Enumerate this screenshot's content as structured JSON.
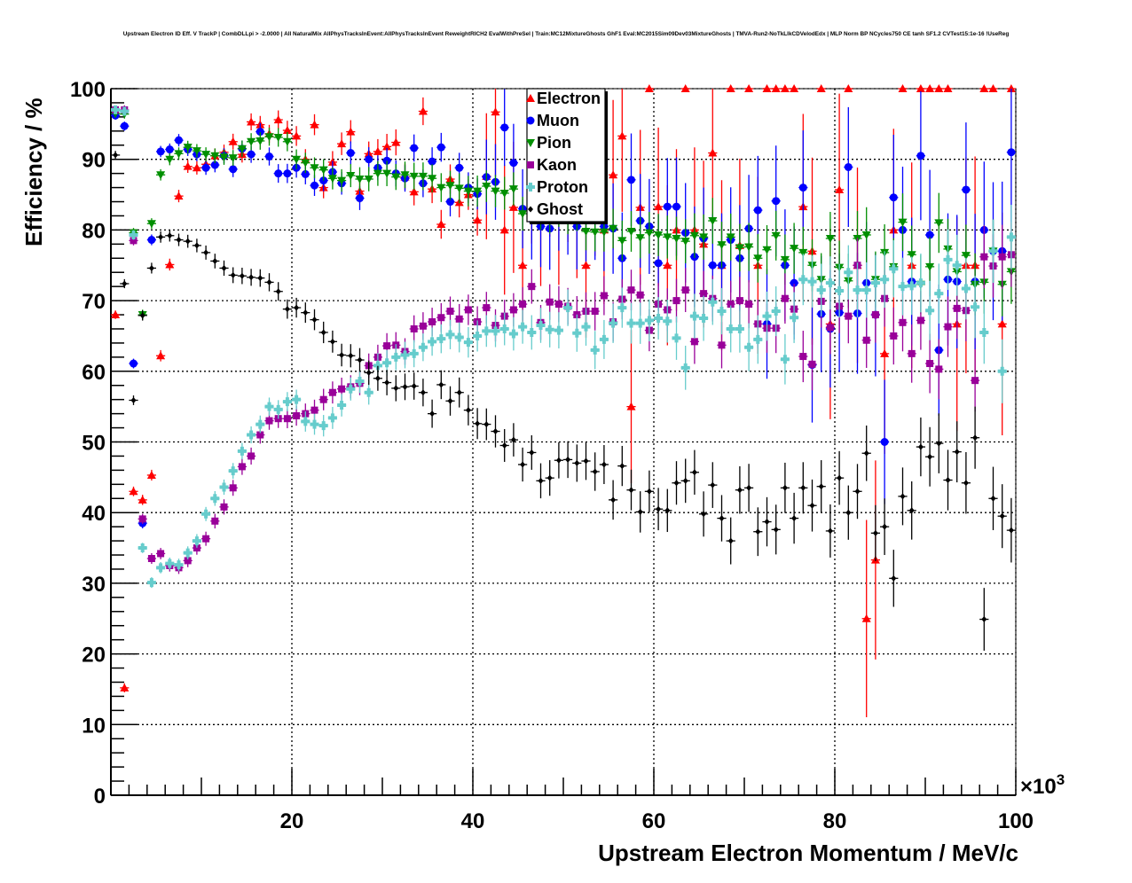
{
  "chart_data": {
    "type": "scatter",
    "title": "Upstream Electron ID Eff. V TrackP | CombDLLpi > -2.0000 | All NaturalMix AllPhysTracksInEvent:AllPhysTracksInEvent ReweightRICH2 EvalWithPreSel | Train:MC12MixtureGhosts GhF1 Eval:MC2015Sim09Dev03MixtureGhosts | TMVA-Run2-NoTkLlkCDVelodEdx | MLP Norm BP NCycles750 CE tanh SF1.2 CVTest15:1e-16 !UseReg",
    "xlabel": "Upstream Electron Momentum / MeV/c",
    "ylabel": "Efficiency / %",
    "x_exponent_label": "×10",
    "x_exponent_power": "3",
    "xlim": [
      0,
      100
    ],
    "ylim": [
      0,
      100
    ],
    "x_bin_width": 1,
    "x_ticks": [
      "20",
      "40",
      "60",
      "80",
      "100"
    ],
    "y_ticks": [
      "0",
      "10",
      "20",
      "30",
      "40",
      "50",
      "60",
      "70",
      "80",
      "90",
      "100"
    ],
    "grid": true,
    "legend_position": "top-center",
    "series": [
      {
        "name": "Electron",
        "color": "#ff0000",
        "marker": "triangle-up",
        "values": [
          68,
          15.2,
          43,
          41.8,
          45.3,
          62.2,
          75.1,
          84.8,
          89,
          88.8,
          89.3,
          90.5,
          91,
          92.5,
          90.7,
          95.3,
          94.9,
          93.6,
          95.6,
          94.1,
          93.3,
          90,
          94.9,
          86,
          89.6,
          92.2,
          93.9,
          85.5,
          90.8,
          91.1,
          91.8,
          92.4,
          87.5,
          85.4,
          96.8,
          85.8,
          80.8,
          87.2,
          83.9,
          85,
          81.4,
          87.6,
          96.7,
          80,
          83.2,
          75,
          87.6,
          81.7,
          88.8,
          82.1,
          88.3,
          83.3,
          75,
          86.7,
          80,
          87.8,
          93.3,
          55,
          83.2,
          100,
          83.3,
          75,
          80,
          100,
          80,
          78,
          90.9,
          75,
          100,
          77.8,
          100,
          75,
          100,
          100,
          100,
          100,
          83.3,
          77,
          100,
          66.7,
          85.7,
          100,
          75,
          25,
          33.3,
          62.5,
          80,
          100,
          75,
          100,
          100,
          100,
          100,
          66.7,
          75,
          75,
          100,
          100,
          66.7,
          100
        ]
      },
      {
        "name": "Muon",
        "color": "#0000ff",
        "marker": "circle",
        "values": [
          96.2,
          94.7,
          61.1,
          38.5,
          78.6,
          91.1,
          91.4,
          92.7,
          91.4,
          90.7,
          88.8,
          89.2,
          90.5,
          88.6,
          91.5,
          90.7,
          93.9,
          90.4,
          88,
          88,
          88.8,
          87.9,
          86.3,
          87,
          88.2,
          86.6,
          90.9,
          84.5,
          90,
          88.8,
          89.8,
          88,
          87.3,
          91.6,
          86.6,
          89.7,
          91.7,
          84,
          88.8,
          86,
          85.1,
          87.5,
          86.8,
          94.5,
          89.5,
          83,
          81.5,
          80.5,
          80.2,
          83,
          82.5,
          80.5,
          81.7,
          82,
          80.5,
          80.2,
          76,
          87.1,
          81.3,
          80.5,
          75.3,
          83.3,
          83.3,
          79.6,
          76.2,
          78.8,
          75,
          75,
          78.6,
          76,
          80.2,
          82.8,
          66.7,
          84.1,
          75,
          72.5,
          86,
          60.9,
          68.1,
          66,
          68.3,
          88.9,
          68.2,
          72.5,
          68,
          50,
          84.6,
          80,
          72.7,
          90.5,
          79.3,
          63,
          73,
          72.7,
          85.7,
          72.7,
          80,
          77,
          77,
          91
        ]
      },
      {
        "name": "Pion",
        "color": "#008f00",
        "marker": "triangle-down",
        "values": [
          96.5,
          96.4,
          79.6,
          68,
          80.9,
          87.8,
          90,
          90.8,
          91.7,
          91.2,
          90.7,
          90.5,
          90.3,
          90.2,
          91.5,
          92.5,
          92.6,
          93.2,
          93.1,
          92.5,
          90,
          89.5,
          88.8,
          88.5,
          87.3,
          87,
          87.7,
          87.2,
          87.2,
          88,
          88,
          87.5,
          87.8,
          87.6,
          87.6,
          87.3,
          86,
          86.3,
          85.9,
          85.5,
          85.5,
          86.2,
          85.5,
          85.2,
          85.8,
          82.3,
          84,
          82.5,
          82,
          83,
          82,
          82.5,
          79.8,
          79.7,
          79.7,
          80.2,
          78.5,
          79.8,
          78.9,
          79.6,
          79.3,
          79,
          78.8,
          78.4,
          79.2,
          79,
          81.3,
          77.9,
          79,
          77.5,
          77.6,
          76,
          77.2,
          79.2,
          75.8,
          77.4,
          76.8,
          75,
          73,
          78.8,
          74.7,
          72.8,
          78.8,
          79.3,
          73,
          76.8,
          74.8,
          81.1,
          76.5,
          72.3,
          74.8,
          81,
          77.3,
          74.1,
          76.4,
          72.3,
          72.6,
          77,
          72.3,
          74.1
        ]
      },
      {
        "name": "Kaon",
        "color": "#990099",
        "marker": "square",
        "values": [
          97,
          97,
          78.5,
          39.1,
          33.5,
          34.2,
          32.5,
          32.2,
          33.2,
          35,
          36.3,
          38.8,
          40.8,
          43.5,
          46.5,
          48,
          51,
          53,
          53.3,
          53.3,
          53.7,
          54,
          54.5,
          56,
          57,
          57.5,
          57.8,
          58.3,
          60.8,
          62,
          63.6,
          63.7,
          62.8,
          66,
          66.4,
          67,
          67.6,
          68.5,
          67.4,
          68.7,
          67,
          69,
          66.5,
          67.8,
          68.7,
          69.5,
          72,
          66.9,
          69.8,
          69.5,
          69.2,
          68,
          68.5,
          68.5,
          70.7,
          67,
          70.2,
          71.5,
          70.8,
          65.8,
          69.5,
          68.7,
          70,
          71.5,
          64.2,
          71,
          70.3,
          63.7,
          69.5,
          70,
          69.5,
          66.7,
          66.1,
          66.1,
          70.3,
          68.8,
          62.1,
          61,
          69.9,
          66.2,
          69.2,
          67.8,
          75,
          64.4,
          68,
          70.3,
          65,
          66.9,
          62.5,
          67.2,
          61.1,
          60.3,
          66.3,
          68.9,
          68.6,
          58.7,
          76.2,
          74.9,
          76.2,
          76.5
        ]
      },
      {
        "name": "Proton",
        "color": "#66cccc",
        "marker": "cross",
        "values": [
          97,
          96.8,
          79.3,
          35,
          30.1,
          32.2,
          32.8,
          32.6,
          34.3,
          36,
          39.8,
          42,
          43.6,
          45.9,
          48.7,
          51,
          52.5,
          55,
          54.6,
          55.7,
          56,
          52.9,
          52.5,
          52.3,
          53.4,
          55.2,
          57.5,
          58.6,
          57,
          60.8,
          61.2,
          62,
          62.3,
          62.5,
          63.4,
          64.2,
          64.6,
          65.2,
          64.8,
          64.1,
          65,
          65.7,
          65.7,
          66,
          65.3,
          66.3,
          65.5,
          66.5,
          65.9,
          65.8,
          69,
          65.4,
          66.3,
          63,
          64.5,
          66.8,
          69,
          66.8,
          66.8,
          67.2,
          67.5,
          67.1,
          64.7,
          60.5,
          67.8,
          67.5,
          69.8,
          68.5,
          66,
          66,
          63.4,
          64.5,
          67.8,
          68.5,
          61.7,
          67.6,
          73,
          72.7,
          71.5,
          72.5,
          71.4,
          74,
          71.5,
          71.5,
          72.5,
          73,
          74.5,
          72,
          72.1,
          72.5,
          68.6,
          71,
          75.8,
          75,
          71.7,
          69.1,
          65.5,
          77,
          60,
          79
        ]
      },
      {
        "name": "Ghost",
        "color": "#000000",
        "marker": "diamond",
        "values": [
          90.6,
          72.4,
          55.9,
          67.9,
          74.6,
          79,
          79.2,
          78.6,
          78.4,
          77.8,
          76.8,
          75.6,
          74.6,
          73.6,
          73.5,
          73.3,
          73.2,
          72.6,
          71.3,
          68.8,
          69,
          68.3,
          67.3,
          65.5,
          64.2,
          62.3,
          62.2,
          61.6,
          59.8,
          59,
          58.4,
          57.6,
          57.8,
          57.9,
          57,
          54,
          58.1,
          55.8,
          57,
          54.5,
          52.6,
          52.5,
          51.5,
          49.5,
          50.3,
          46.8,
          48.5,
          44.5,
          44.9,
          47.4,
          47.5,
          47,
          47.3,
          45.8,
          46.8,
          41.8,
          46.6,
          43.2,
          40.1,
          43,
          40.5,
          40.3,
          44.2,
          44.5,
          45.7,
          39.8,
          43.9,
          39.2,
          36,
          43.2,
          43.5,
          37.3,
          38.7,
          37.6,
          43.5,
          39.2,
          43.5,
          41,
          43.7,
          37.4,
          44.9,
          40,
          43,
          48.4,
          37.1,
          38,
          30.7,
          42.3,
          40.3,
          49.3,
          47.9,
          49.8,
          44.6,
          48.6,
          44.2,
          50.6,
          24.9,
          42,
          39.5,
          37.5
        ]
      }
    ]
  }
}
